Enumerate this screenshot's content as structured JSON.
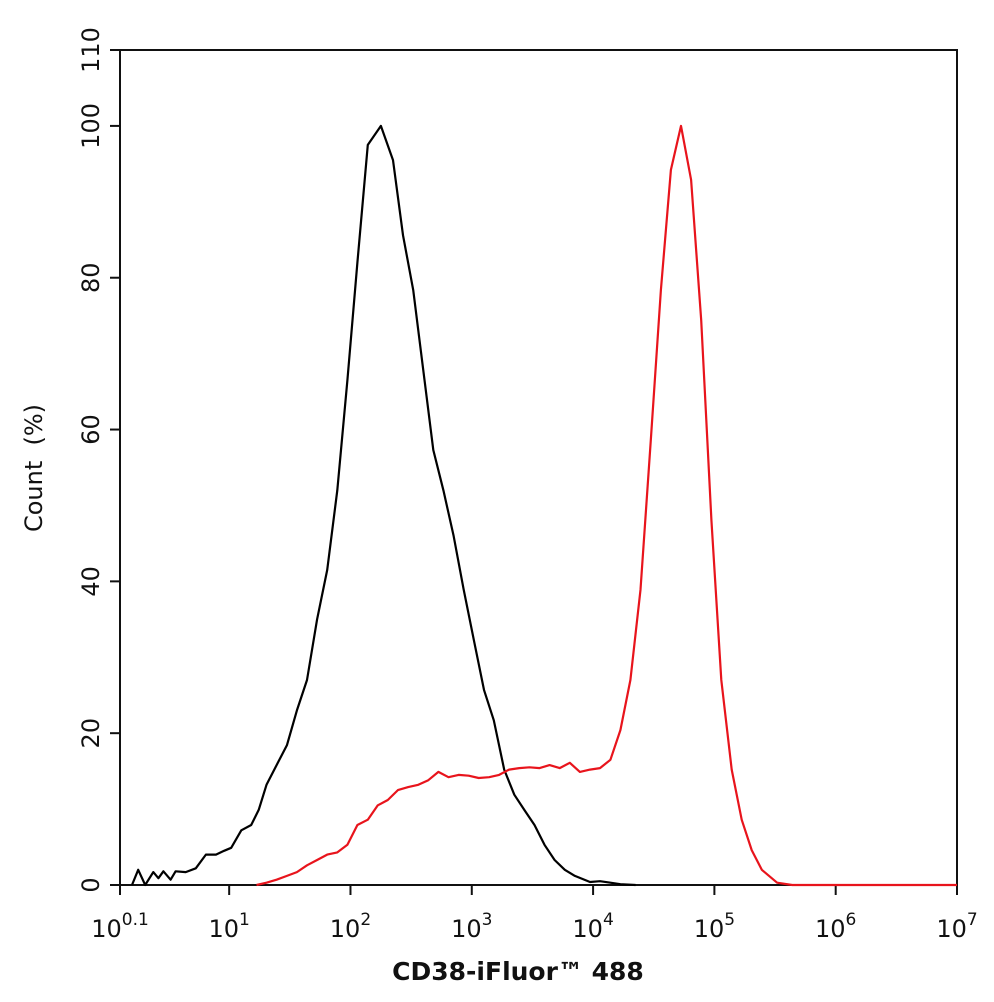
{
  "chart_data": {
    "type": "line",
    "x_label": "CD38-iFluor™ 488",
    "y_label": "Count  (%)",
    "x_log": true,
    "xlim": [
      1.259,
      10000000
    ],
    "xticks": [
      {
        "value": 1.259,
        "label": "10",
        "superscript": "0.1"
      },
      {
        "value": 10,
        "label": "10",
        "superscript": "1"
      },
      {
        "value": 100,
        "label": "10",
        "superscript": "2"
      },
      {
        "value": 1000,
        "label": "10",
        "superscript": "3"
      },
      {
        "value": 10000,
        "label": "10",
        "superscript": "4"
      },
      {
        "value": 100000,
        "label": "10",
        "superscript": "5"
      },
      {
        "value": 1000000,
        "label": "10",
        "superscript": "6"
      },
      {
        "value": 10000000,
        "label": "10",
        "superscript": "7"
      }
    ],
    "ylim": [
      0,
      110
    ],
    "yticks": [
      0,
      20,
      40,
      60,
      80,
      100,
      110
    ],
    "series": [
      {
        "color": "#000000",
        "x": [
          1.58,
          1.78,
          2.03,
          2.37,
          2.61,
          2.87,
          3.29,
          3.62,
          4.38,
          5.31,
          6.43,
          7.79,
          9.08,
          10.4,
          12.6,
          15.2,
          17.5,
          20.3,
          24.6,
          29.9,
          36.2,
          43.8,
          53.1,
          64.3,
          77.9,
          94.4,
          114,
          139,
          178,
          224,
          271,
          329,
          398,
          482,
          584,
          708,
          857,
          1040,
          1260,
          1520,
          1850,
          2240,
          2710,
          3290,
          3980,
          4820,
          5840,
          7080,
          9440,
          11400,
          13900,
          16800,
          22400
        ],
        "values": [
          0,
          2,
          0,
          1.7,
          0.9,
          1.8,
          0.7,
          1.8,
          1.7,
          2.2,
          4,
          4,
          4.5,
          4.9,
          7.2,
          7.9,
          9.9,
          13.2,
          15.8,
          18.4,
          23,
          27,
          35,
          41.5,
          52,
          66.5,
          82,
          97.5,
          100,
          95.5,
          85.6,
          78.4,
          67.9,
          57.3,
          52,
          46,
          38.9,
          32.3,
          25.7,
          21.7,
          15.2,
          11.9,
          9.9,
          7.9,
          5.3,
          3.3,
          2,
          1.2,
          0.4,
          0.5,
          0.3,
          0.1,
          0
        ]
      },
      {
        "color": "#e8141c",
        "x": [
          16.8,
          20.3,
          24.6,
          29.9,
          36.2,
          43.8,
          53.1,
          64.3,
          77.9,
          94.4,
          114,
          139,
          168,
          203,
          246,
          299,
          362,
          438,
          531,
          643,
          779,
          944,
          1140,
          1390,
          1680,
          2030,
          2460,
          2990,
          3620,
          4380,
          5310,
          6430,
          7790,
          9440,
          11400,
          13900,
          16800,
          20300,
          24600,
          29900,
          36200,
          43800,
          53100,
          64300,
          77900,
          94400,
          114000,
          139000,
          168000,
          203000,
          246000,
          329000,
          438000,
          10000000
        ],
        "values": [
          0,
          0.3,
          0.7,
          1.2,
          1.7,
          2.6,
          3.3,
          4,
          4.3,
          5.3,
          7.9,
          8.6,
          10.5,
          11.2,
          12.5,
          12.9,
          13.2,
          13.8,
          14.9,
          14.2,
          14.5,
          14.4,
          14.1,
          14.2,
          14.5,
          15.2,
          15.4,
          15.5,
          15.4,
          15.8,
          15.4,
          16.1,
          14.9,
          15.2,
          15.4,
          16.5,
          20.4,
          27,
          38.9,
          58.6,
          78.4,
          94.2,
          100,
          92.9,
          74.4,
          48.1,
          27,
          15.2,
          8.6,
          4.6,
          2,
          0.3,
          0,
          0
        ]
      }
    ]
  }
}
